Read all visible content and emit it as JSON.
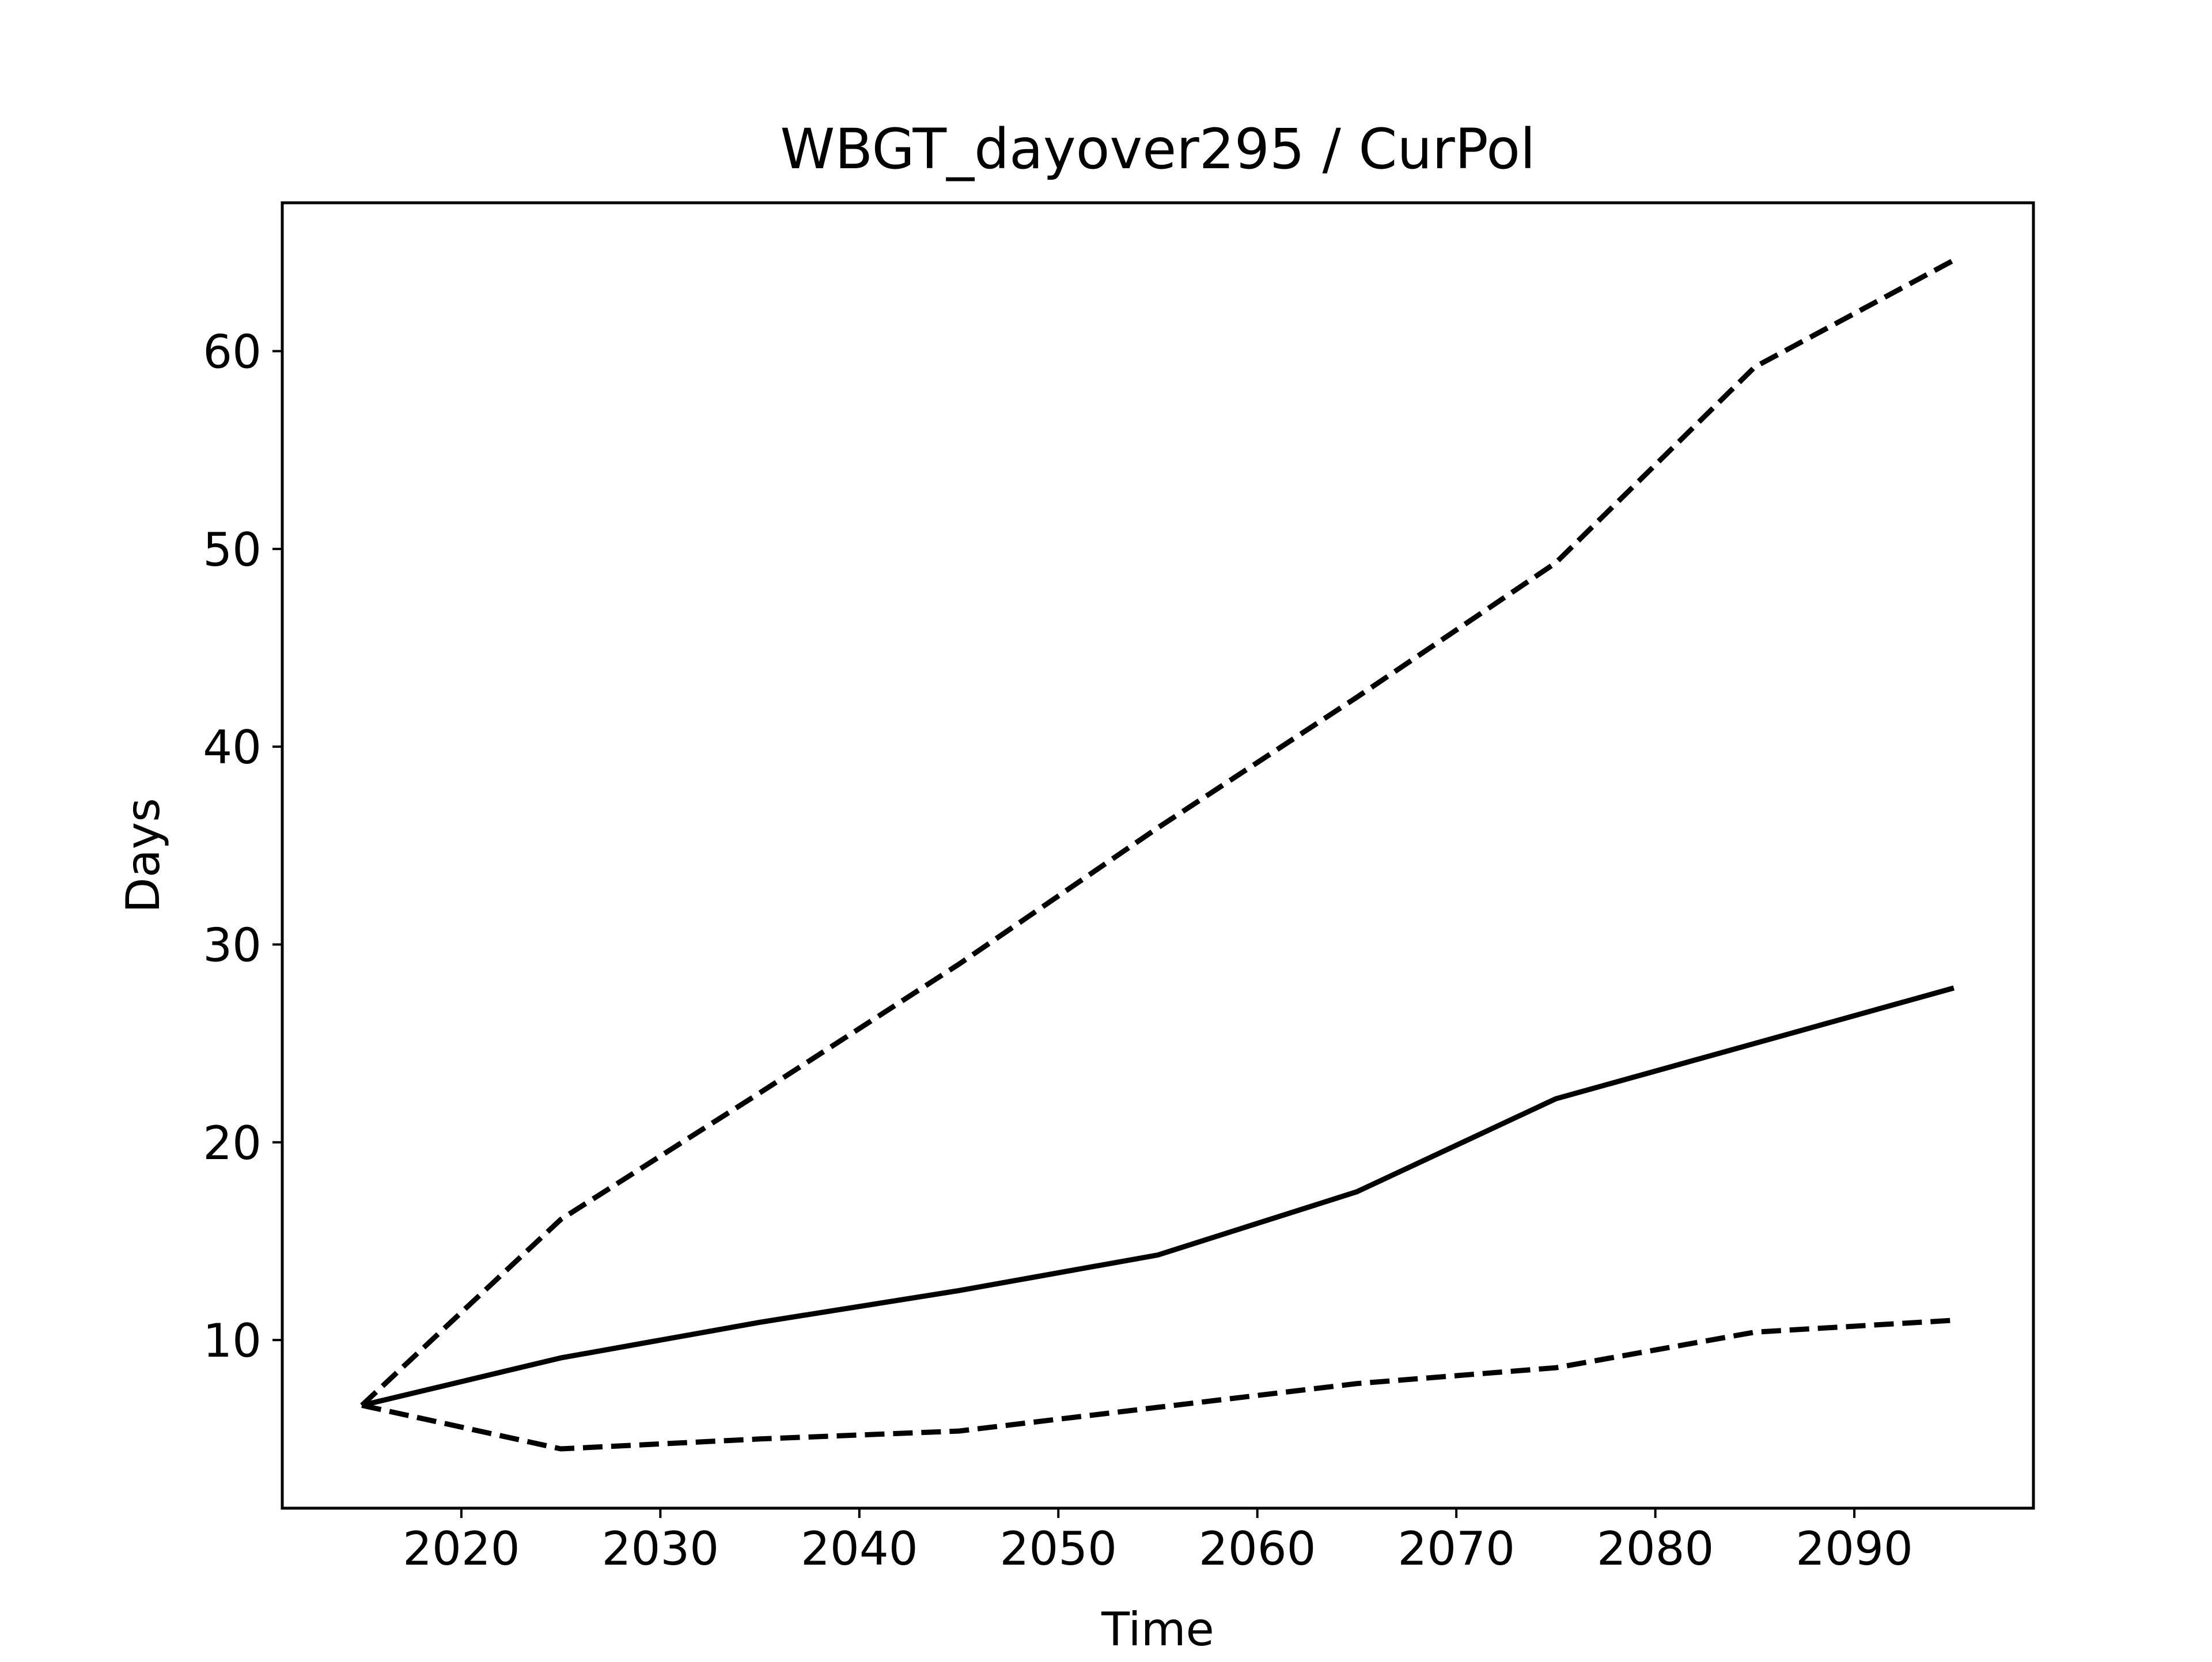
{
  "chart_data": {
    "type": "line",
    "title": "WBGT_dayover295 / CurPol",
    "xlabel": "Time",
    "ylabel": "Days",
    "xlim": [
      2011,
      2099
    ],
    "ylim": [
      1.5,
      67.5
    ],
    "xticks": [
      2020,
      2030,
      2040,
      2050,
      2060,
      2070,
      2080,
      2090
    ],
    "yticks": [
      10,
      20,
      30,
      40,
      50,
      60
    ],
    "xtick_labels": [
      "2020",
      "2030",
      "2040",
      "2050",
      "2060",
      "2070",
      "2080",
      "2090"
    ],
    "ytick_labels": [
      "10",
      "20",
      "30",
      "40",
      "50",
      "60"
    ],
    "grid": false,
    "series": [
      {
        "style": "solid",
        "color": "#000000",
        "x": [
          2015,
          2025,
          2035,
          2045,
          2055,
          2065,
          2075,
          2085,
          2095
        ],
        "values": [
          6.7,
          9.1,
          10.9,
          12.5,
          14.3,
          17.5,
          22.2,
          25.0,
          27.8
        ]
      },
      {
        "style": "dashed",
        "color": "#000000",
        "x": [
          2015,
          2025,
          2035,
          2045,
          2055,
          2065,
          2075,
          2085,
          2095
        ],
        "values": [
          6.7,
          16.1,
          22.5,
          29.0,
          35.9,
          42.5,
          49.3,
          59.2,
          64.6
        ]
      },
      {
        "style": "dashed",
        "color": "#000000",
        "x": [
          2015,
          2025,
          2035,
          2045,
          2055,
          2065,
          2075,
          2085,
          2095
        ],
        "values": [
          6.7,
          4.5,
          5.0,
          5.4,
          6.6,
          7.8,
          8.6,
          10.4,
          11.0
        ]
      }
    ]
  }
}
